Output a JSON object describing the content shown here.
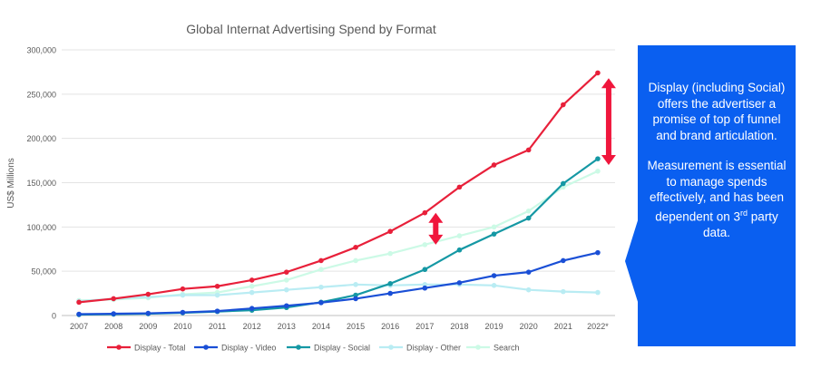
{
  "chart_data": {
    "type": "line",
    "title": "Global Internat Advertising Spend by Format",
    "ylabel": "US$ Millions",
    "xlabel": "",
    "categories": [
      "2007",
      "2008",
      "2009",
      "2010",
      "2011",
      "2012",
      "2013",
      "2014",
      "2015",
      "2016",
      "2017",
      "2018",
      "2019",
      "2020",
      "2021",
      "2022*"
    ],
    "ylim": [
      0,
      300000
    ],
    "yticks": [
      0,
      50000,
      100000,
      150000,
      200000,
      250000,
      300000
    ],
    "ytick_labels": [
      "0",
      "50,000",
      "100,000",
      "150,000",
      "200,000",
      "250,000",
      "300,000"
    ],
    "grid": true,
    "legend_position": "bottom",
    "series": [
      {
        "name": "Display - Total",
        "color": "#e8203a",
        "values": [
          15000,
          19000,
          24000,
          30000,
          33000,
          40000,
          49000,
          62000,
          77000,
          95000,
          116000,
          145000,
          170000,
          187000,
          238000,
          274000
        ]
      },
      {
        "name": "Display - Video",
        "color": "#1a4fd6",
        "values": [
          1500,
          2000,
          2500,
          3500,
          5000,
          8000,
          11000,
          14500,
          19000,
          25000,
          31000,
          37000,
          45000,
          49000,
          62000,
          71000
        ]
      },
      {
        "name": "Display - Social",
        "color": "#1598a4",
        "values": [
          1000,
          1500,
          2000,
          3000,
          4500,
          6000,
          9000,
          15000,
          23000,
          36000,
          52000,
          74000,
          92000,
          110000,
          149000,
          177000
        ]
      },
      {
        "name": "Display - Other",
        "color": "#b9ecf3",
        "values": [
          16000,
          19000,
          21000,
          23000,
          23000,
          26000,
          29000,
          32000,
          35000,
          34000,
          35000,
          35000,
          34000,
          29000,
          27000,
          26000
        ]
      },
      {
        "name": "Search",
        "color": "#ccfae6",
        "values": [
          17000,
          18000,
          20000,
          24000,
          26000,
          33000,
          40000,
          52000,
          62000,
          70000,
          80000,
          90000,
          100000,
          118000,
          145000,
          163000
        ]
      }
    ],
    "arrow_color": "#f0163c",
    "annotations": [
      {
        "type": "double-arrow",
        "x": "2017",
        "y_from": 80000,
        "y_to": 116000
      },
      {
        "type": "double-arrow",
        "x": "2022*",
        "y_from": 170000,
        "y_to": 268000
      }
    ]
  },
  "callout": {
    "color": "#0a5ff0",
    "paragraph1": "Display (including Social) offers the advertiser a promise of top of funnel and brand articulation.",
    "paragraph2_main": "Measurement is essential to manage spends effectively, and has been dependent on 3",
    "paragraph2_sup": "rd",
    "paragraph2_tail": " party data."
  }
}
